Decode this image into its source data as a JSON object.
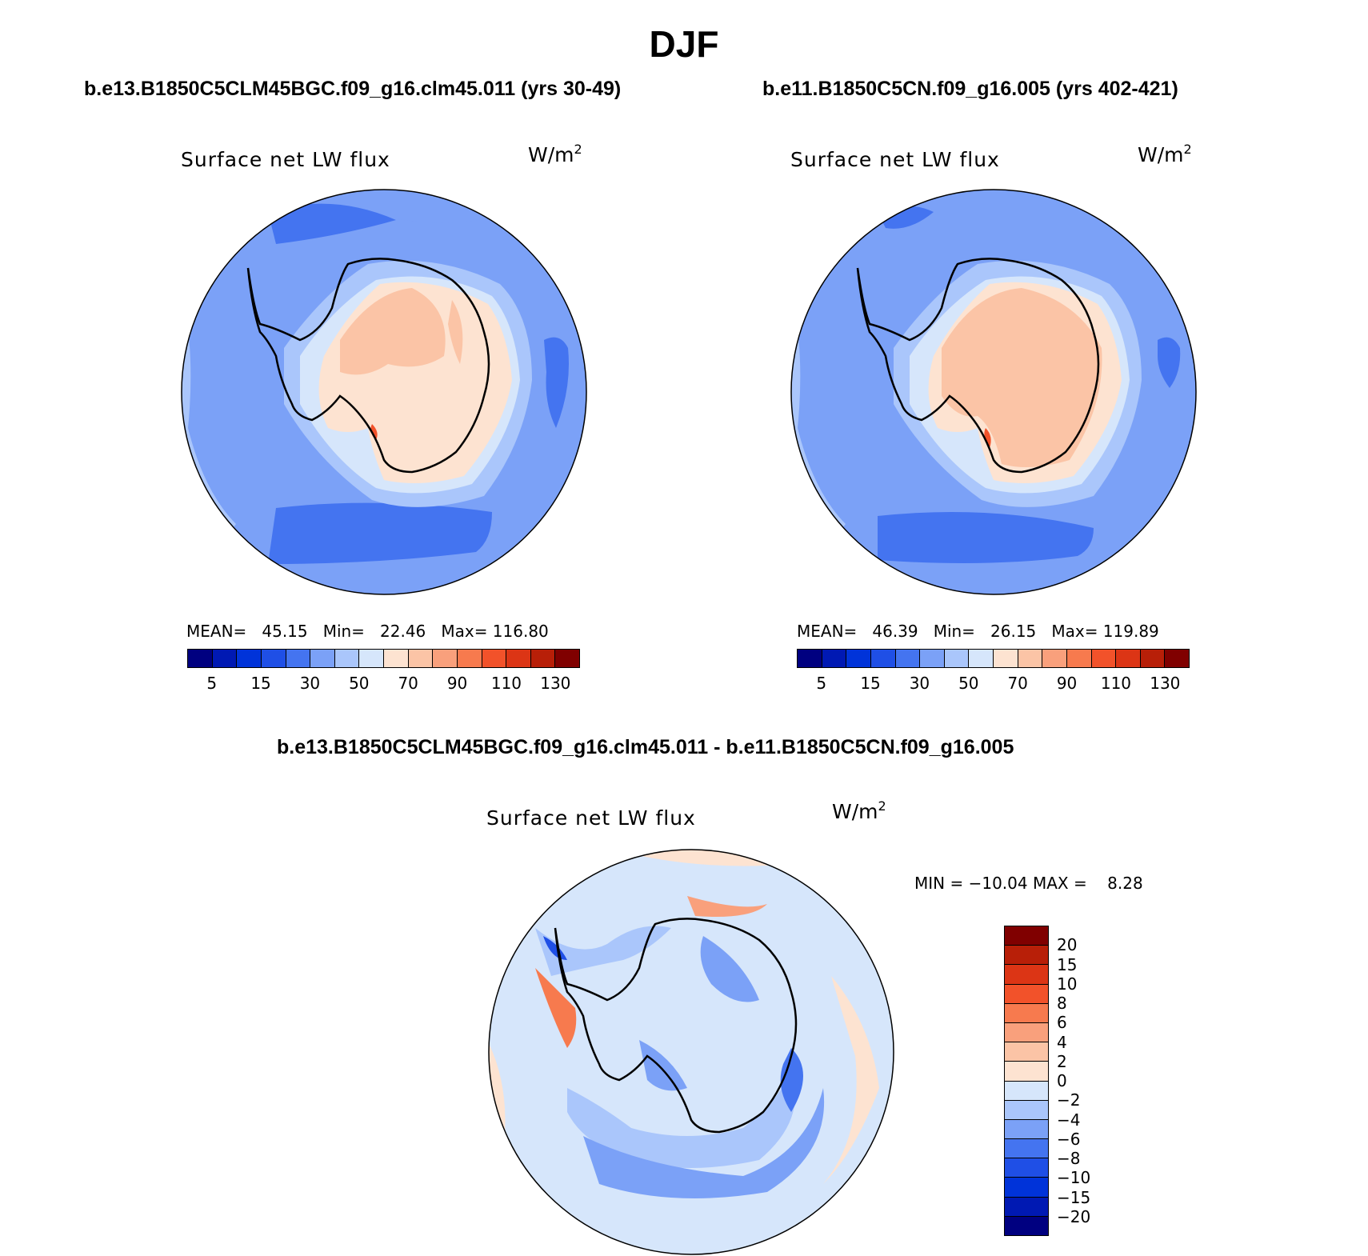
{
  "title": "DJF",
  "case1": {
    "title": "b.e13.B1850C5CLM45BGC.f09_g16.clm45.011 (yrs 30-49)",
    "plot_title": "Surface net LW flux",
    "units": "W/m",
    "units_sup": "2",
    "stats": "MEAN=   45.15   Min=   22.46   Max= 116.80"
  },
  "case2": {
    "title": "b.e11.B1850C5CN.f09_g16.005 (yrs 402-421)",
    "plot_title": "Surface net LW flux",
    "units": "W/m",
    "units_sup": "2",
    "stats": "MEAN=   46.39   Min=   26.15   Max= 119.89"
  },
  "diff": {
    "title": "b.e13.B1850C5CLM45BGC.f09_g16.clm45.011 - b.e11.B1850C5CN.f09_g16.005",
    "plot_title": "Surface net LW flux",
    "units": "W/m",
    "units_sup": "2",
    "stats": "MIN = −10.04 MAX =    8.28"
  },
  "colors": {
    "abs_scale": [
      "#000080",
      "#0019b3",
      "#0033d9",
      "#1f4fe6",
      "#4474f0",
      "#7ba1f7",
      "#aac6fb",
      "#d6e6fb",
      "#fde3d1",
      "#fbc4a6",
      "#f9a07c",
      "#f77a4e",
      "#f2522a",
      "#dc3515",
      "#b81f08",
      "#800000"
    ],
    "diff_scale": [
      "#800000",
      "#b81f08",
      "#dc3515",
      "#f2522a",
      "#f77a4e",
      "#f9a07c",
      "#fbc4a6",
      "#fde3d1",
      "#d6e6fb",
      "#aac6fb",
      "#7ba1f7",
      "#4474f0",
      "#1f4fe6",
      "#0033d9",
      "#0019b3",
      "#000080"
    ]
  },
  "chart_data": [
    {
      "type": "heatmap",
      "projection": "south polar stereographic",
      "variable": "Surface net LW flux",
      "units": "W/m2",
      "case": "b.e13.B1850C5CLM45BGC.f09_g16.clm45.011 (yrs 30-49)",
      "mean": 45.15,
      "min": 22.46,
      "max": 116.8,
      "colorbar_labels": [
        "5",
        "15",
        "30",
        "50",
        "70",
        "90",
        "110",
        "130"
      ]
    },
    {
      "type": "heatmap",
      "projection": "south polar stereographic",
      "variable": "Surface net LW flux",
      "units": "W/m2",
      "case": "b.e11.B1850C5CN.f09_g16.005 (yrs 402-421)",
      "mean": 46.39,
      "min": 26.15,
      "max": 119.89,
      "colorbar_labels": [
        "5",
        "15",
        "30",
        "50",
        "70",
        "90",
        "110",
        "130"
      ]
    },
    {
      "type": "heatmap",
      "projection": "south polar stereographic",
      "variable": "Surface net LW flux",
      "units": "W/m2",
      "case": "b.e13.B1850C5CLM45BGC.f09_g16.clm45.011 - b.e11.B1850C5CN.f09_g16.005",
      "min": -10.04,
      "max": 8.28,
      "colorbar_labels": [
        "20",
        "15",
        "10",
        "8",
        "6",
        "4",
        "2",
        "0",
        "−2",
        "−4",
        "−6",
        "−8",
        "−10",
        "−15",
        "−20"
      ]
    }
  ]
}
